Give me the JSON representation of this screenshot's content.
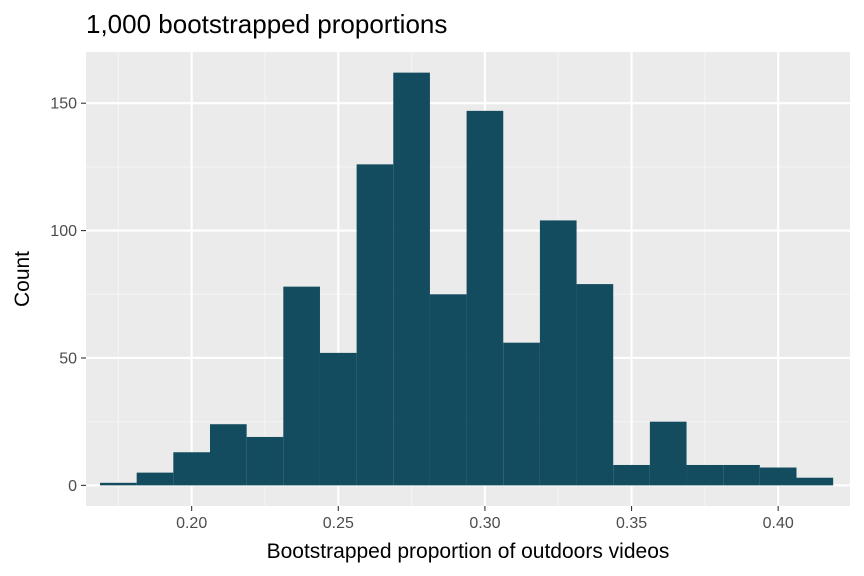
{
  "chart_data": {
    "type": "bar",
    "title": "1,000 bootstrapped proportions",
    "xlabel": "Bootstrapped proportion of outdoors videos",
    "ylabel": "Count",
    "xlim": [
      0.16397,
      0.42449
    ],
    "ylim": [
      -8.1,
      170.1
    ],
    "x_ticks": [
      0.2,
      0.25,
      0.3,
      0.35,
      0.4
    ],
    "x_tick_labels": [
      "0.20",
      "0.25",
      "0.30",
      "0.35",
      "0.40"
    ],
    "y_ticks": [
      0,
      50,
      100,
      150
    ],
    "y_tick_labels": [
      "0",
      "50",
      "100",
      "150"
    ],
    "bin_width": 0.0125,
    "bins": [
      {
        "x": 0.175,
        "count": 1
      },
      {
        "x": 0.1875,
        "count": 5
      },
      {
        "x": 0.2,
        "count": 13
      },
      {
        "x": 0.2125,
        "count": 24
      },
      {
        "x": 0.225,
        "count": 19
      },
      {
        "x": 0.2375,
        "count": 78
      },
      {
        "x": 0.25,
        "count": 52
      },
      {
        "x": 0.2625,
        "count": 126
      },
      {
        "x": 0.275,
        "count": 162
      },
      {
        "x": 0.2875,
        "count": 75
      },
      {
        "x": 0.3,
        "count": 147
      },
      {
        "x": 0.3125,
        "count": 56
      },
      {
        "x": 0.325,
        "count": 104
      },
      {
        "x": 0.3375,
        "count": 79
      },
      {
        "x": 0.35,
        "count": 8
      },
      {
        "x": 0.3625,
        "count": 25
      },
      {
        "x": 0.375,
        "count": 8
      },
      {
        "x": 0.3875,
        "count": 8
      },
      {
        "x": 0.4,
        "count": 7
      },
      {
        "x": 0.4125,
        "count": 3
      }
    ],
    "grid": true,
    "colors": {
      "bar": "#134b5f",
      "panel_background": "#ebebeb",
      "grid_major": "#ffffff",
      "grid_minor": "#f4f4f4",
      "tick_label": "#4d4d4d",
      "tick_mark": "#333333"
    }
  }
}
